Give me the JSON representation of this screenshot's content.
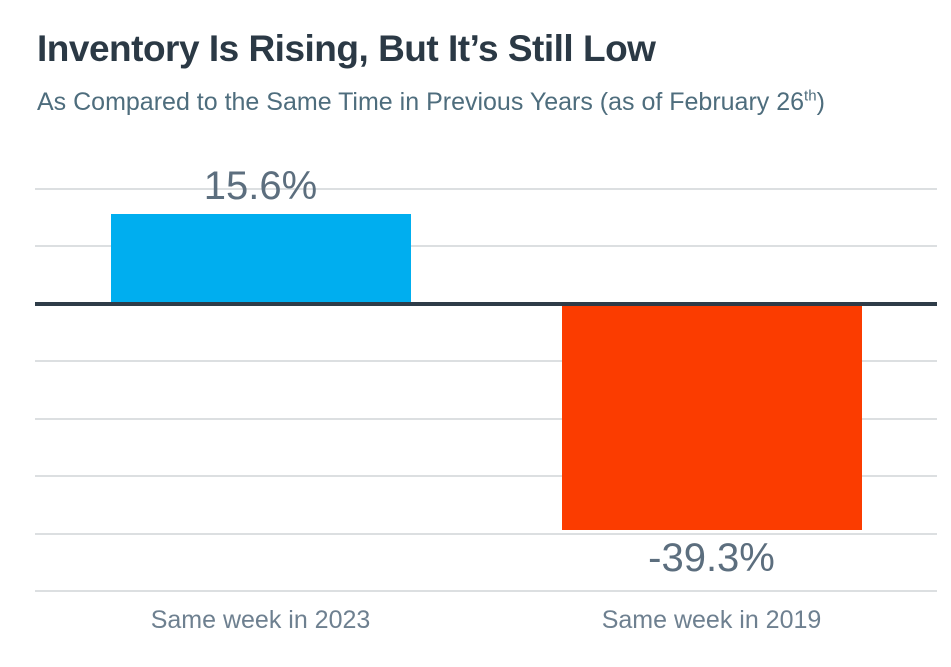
{
  "page": {
    "title": "Inventory Is Rising, But It’s Still Low",
    "subtitle_prefix": "As Compared to the Same Time in Previous Years (as of February 26",
    "subtitle_sup": "th",
    "subtitle_suffix": ")"
  },
  "chart_data": {
    "type": "bar",
    "title": "Inventory Is Rising, But It’s Still Low",
    "subtitle": "As Compared to the Same Time in Previous Years (as of February 26th)",
    "categories": [
      "Same week in 2023",
      "Same week in 2019"
    ],
    "values": [
      15.6,
      -39.3
    ],
    "value_labels": [
      "15.6%",
      "-39.3%"
    ],
    "bar_colors": [
      "#00aeef",
      "#fb3c00"
    ],
    "ylim": [
      -50,
      20
    ],
    "grid_step": 10,
    "grid": true,
    "legend": "none",
    "axis_tick_labels": "none",
    "grid_color": "#dcdfe1",
    "zero_line_color": "#2e3c48",
    "value_label_color": "#5c6e7e",
    "category_label_color": "#6e8090",
    "title_color": "#2b3945",
    "subtitle_color": "#4e6d7d",
    "background_color": "#ffffff"
  }
}
